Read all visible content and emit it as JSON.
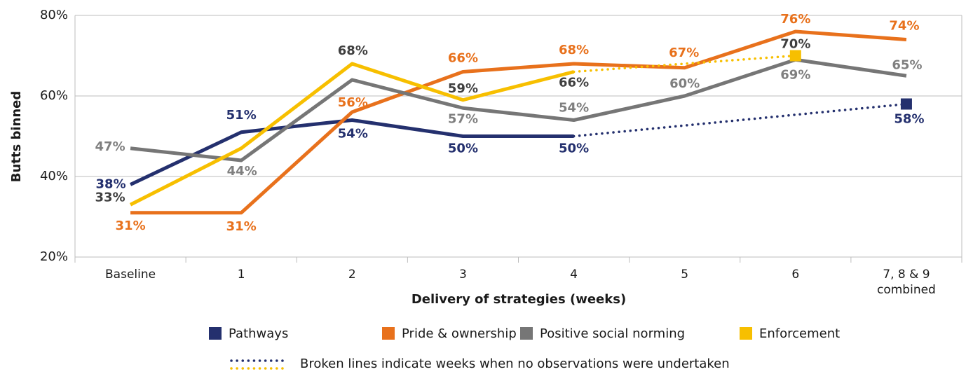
{
  "chart_data": {
    "type": "line",
    "categories": [
      "Baseline",
      "1",
      "2",
      "3",
      "4",
      "5",
      "6",
      "7, 8 & 9 combined"
    ],
    "series": [
      {
        "name": "Pathways",
        "color": "#24306e",
        "label_color": "#24306e",
        "values": [
          38,
          51,
          54,
          50,
          50,
          null,
          null,
          58
        ],
        "value_labels": [
          "38%",
          "51%",
          "54%",
          "50%",
          "50%",
          null,
          null,
          "58%"
        ]
      },
      {
        "name": "Pride & ownership",
        "color": "#e8711c",
        "label_color": "#e8711c",
        "values": [
          31,
          31,
          56,
          66,
          68,
          67,
          76,
          74
        ],
        "value_labels": [
          "31%",
          "31%",
          "56%",
          "66%",
          "68%",
          "67%",
          "76%",
          "74%"
        ]
      },
      {
        "name": "Positive social norming",
        "color": "#767676",
        "label_color": "#7f7f7f",
        "values": [
          47,
          44,
          64,
          57,
          54,
          60,
          69,
          65
        ],
        "value_labels": [
          "47%",
          "44%",
          null,
          "57%",
          "54%",
          "60%",
          "69%",
          "65%"
        ]
      },
      {
        "name": "Enforcement",
        "color": "#f7bf00",
        "label_color": "#3f3f3f",
        "values": [
          33,
          47,
          68,
          59,
          66,
          null,
          70,
          null
        ],
        "value_labels": [
          "33%",
          null,
          "68%",
          "59%",
          "66%",
          null,
          "70%",
          null
        ]
      }
    ],
    "ylim": [
      20,
      80
    ],
    "yticks": [
      {
        "value": 20,
        "label": "20%"
      },
      {
        "value": 40,
        "label": "40%"
      },
      {
        "value": 60,
        "label": "60%"
      },
      {
        "value": 80,
        "label": "80%"
      }
    ],
    "y_label": "Butts binned",
    "x_label": "Delivery of strategies (weeks)",
    "note": "Broken lines indicate weeks when no observations were undertaken",
    "grid": true
  }
}
